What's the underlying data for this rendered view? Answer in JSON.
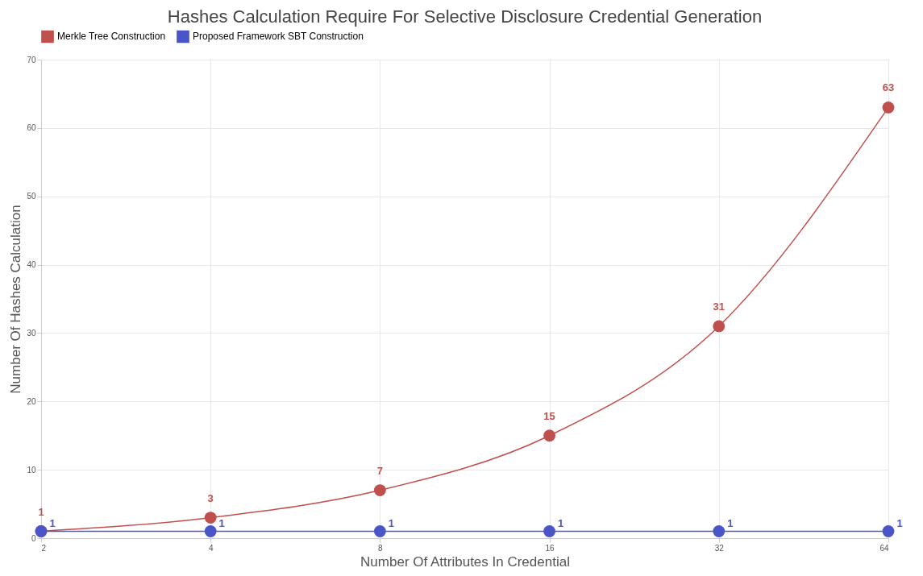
{
  "chart_data": {
    "type": "line",
    "title": "Hashes Calculation Require For Selective Disclosure Credential Generation",
    "xlabel": "Number Of Attributes In Credential",
    "ylabel": "Number Of Hashes Calculation",
    "categories": [
      "2",
      "4",
      "8",
      "16",
      "32",
      "64"
    ],
    "series": [
      {
        "name": "Merkle Tree Construction",
        "color": "#c0504d",
        "values": [
          1,
          3,
          7,
          15,
          31,
          63
        ]
      },
      {
        "name": "Proposed Framework SBT Construction",
        "color": "#4a56c8",
        "values": [
          1,
          1,
          1,
          1,
          1,
          1
        ]
      }
    ],
    "ylim": [
      0,
      70
    ],
    "yticks": [
      0,
      10,
      20,
      30,
      40,
      50,
      60,
      70
    ],
    "grid": true,
    "legend": "top",
    "marker": "circle",
    "line_style": "solid",
    "data_labels": true
  }
}
